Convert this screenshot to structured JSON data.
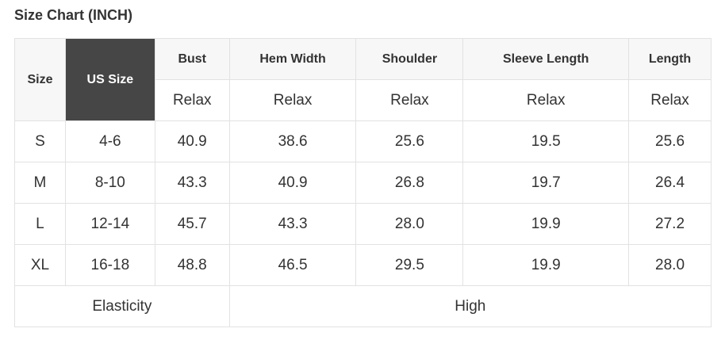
{
  "title": "Size Chart (INCH)",
  "headers": {
    "size": "Size",
    "us_size": "US Size",
    "columns": [
      "Bust",
      "Hem Width",
      "Shoulder",
      "Sleeve Length",
      "Length"
    ],
    "fit": [
      "Relax",
      "Relax",
      "Relax",
      "Relax",
      "Relax"
    ]
  },
  "rows": [
    [
      "S",
      "4-6",
      "40.9",
      "38.6",
      "25.6",
      "19.5",
      "25.6"
    ],
    [
      "M",
      "8-10",
      "43.3",
      "40.9",
      "26.8",
      "19.7",
      "26.4"
    ],
    [
      "L",
      "12-14",
      "45.7",
      "43.3",
      "28.0",
      "19.9",
      "27.2"
    ],
    [
      "XL",
      "16-18",
      "48.8",
      "46.5",
      "29.5",
      "19.9",
      "28.0"
    ]
  ],
  "elasticity": {
    "label": "Elasticity",
    "value": "High"
  },
  "colors": {
    "header_bg": "#f7f7f7",
    "highlight_bg": "#464646",
    "border": "#e2e2e2"
  }
}
